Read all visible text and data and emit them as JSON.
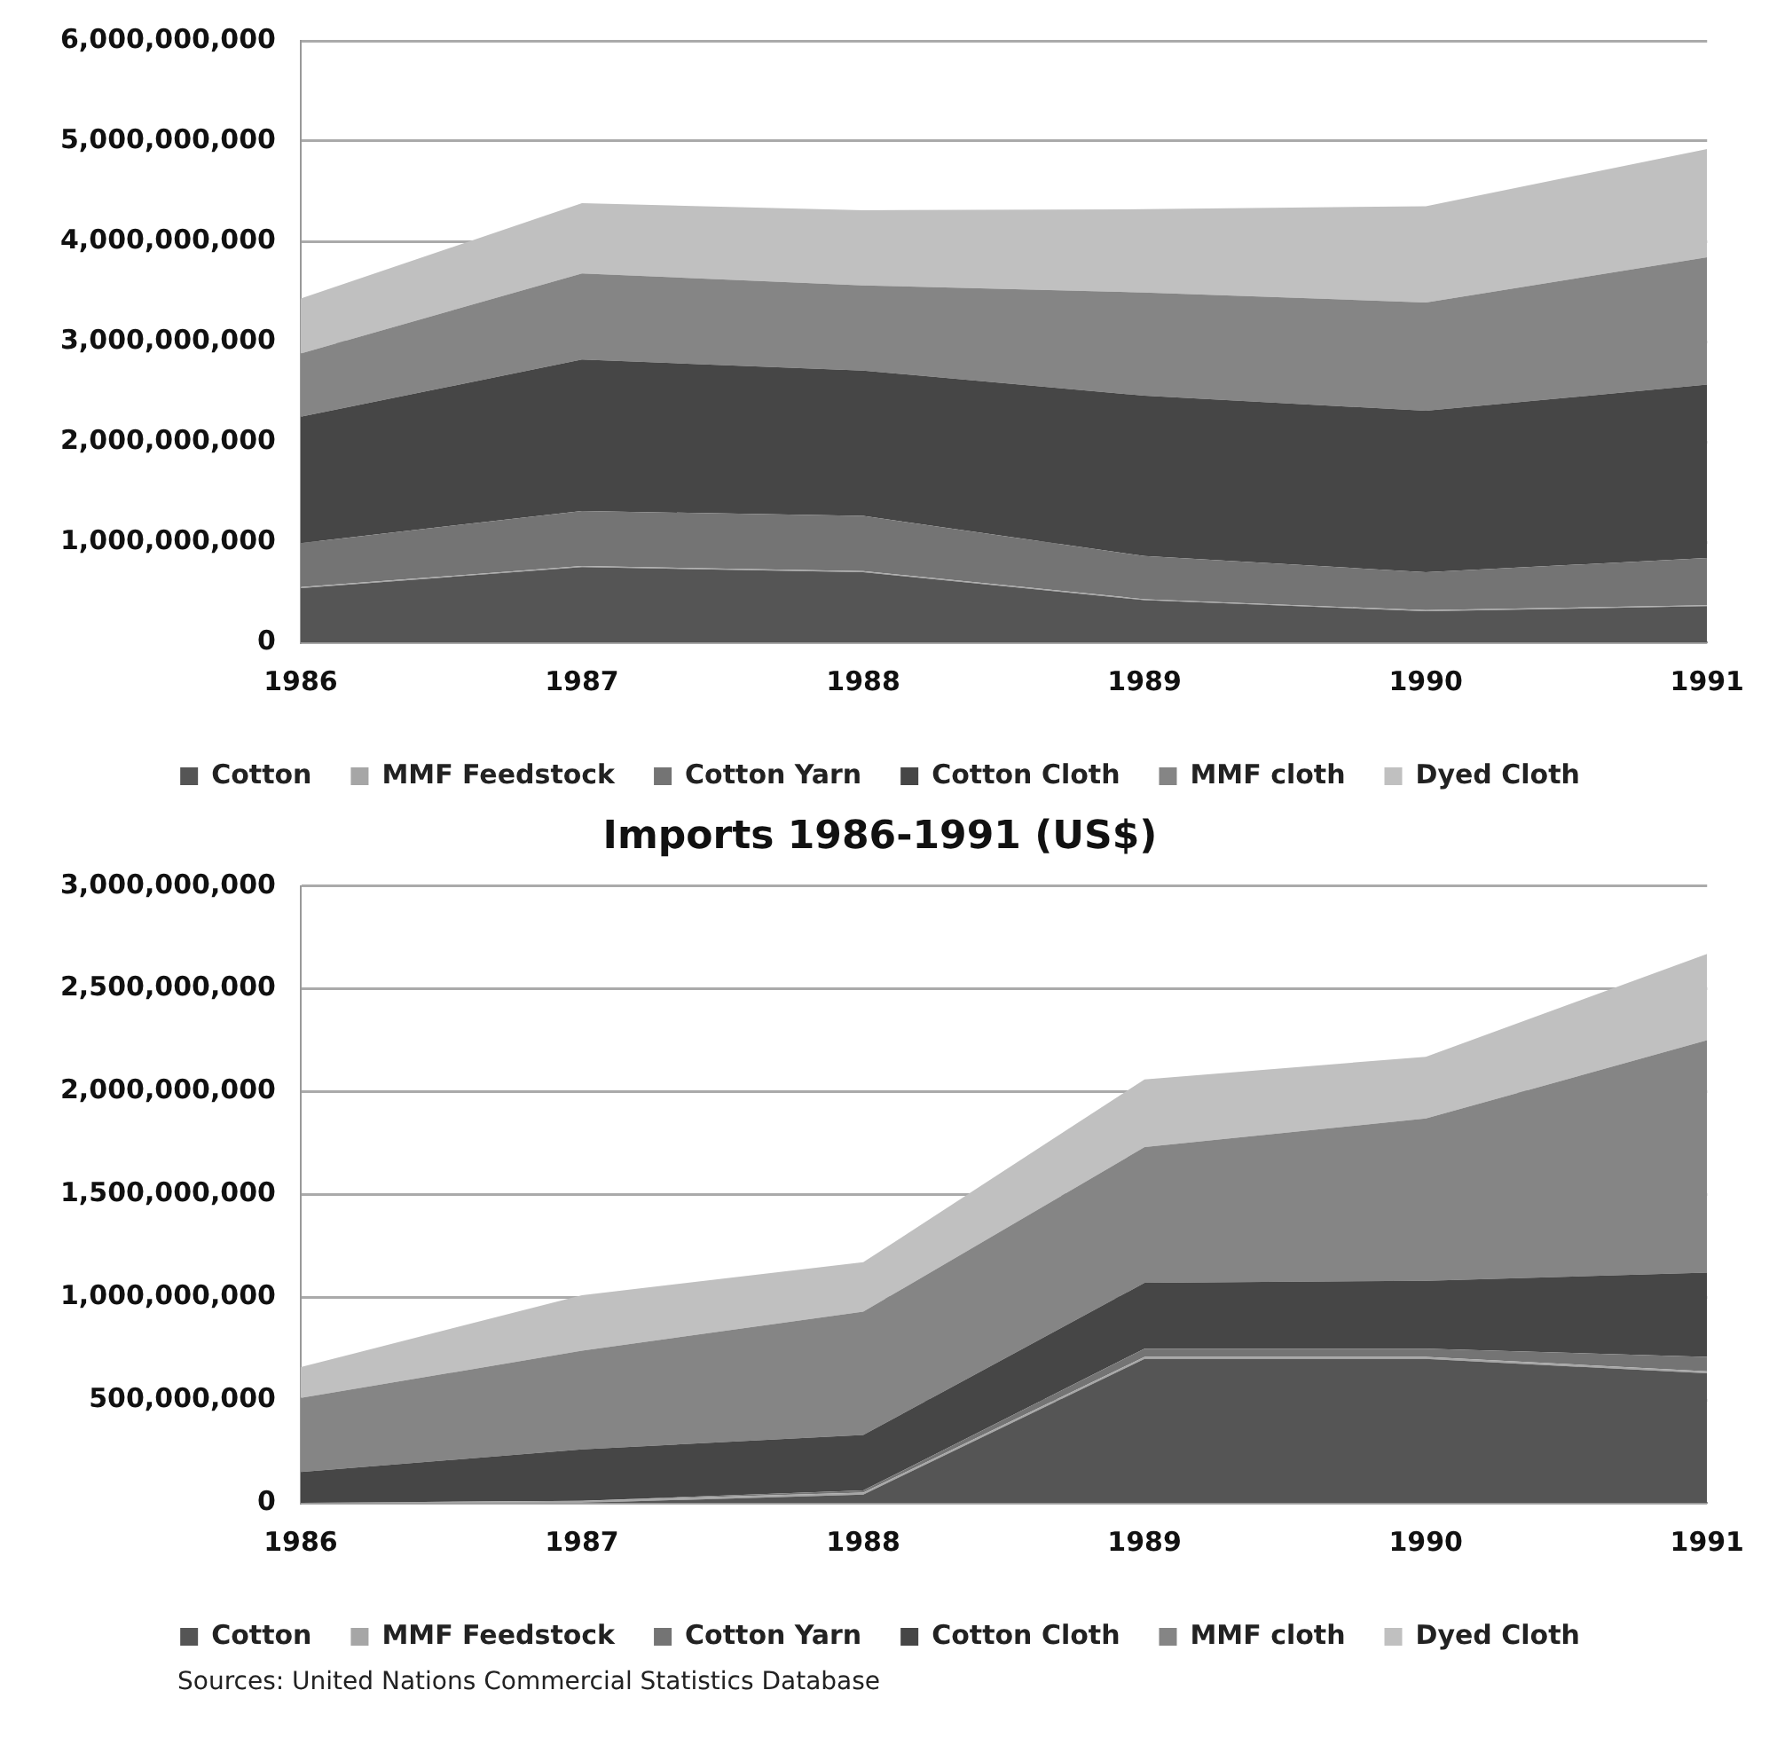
{
  "chart_data": [
    {
      "type": "area",
      "stacked": true,
      "categories": [
        "1986",
        "1987",
        "1988",
        "1989",
        "1990",
        "1991"
      ],
      "ylim": [
        0,
        6000000000
      ],
      "yticks": [
        0,
        {
          "value": 1000000000,
          "label": "1,000,000,000"
        },
        {
          "value": 2000000000,
          "label": "2,000,000,000"
        },
        {
          "value": 3000000000,
          "label": "3,000,000,000"
        },
        {
          "value": 4000000000,
          "label": "4,000,000,000"
        },
        {
          "value": 5000000000,
          "label": "5,000,000,000"
        },
        {
          "value": 6000000000,
          "label": "6,000,000,000"
        }
      ],
      "grid": "y",
      "legend": "bottom",
      "series": [
        {
          "name": "Cotton",
          "color": "#555555",
          "values": [
            540000000,
            750000000,
            700000000,
            420000000,
            310000000,
            360000000
          ]
        },
        {
          "name": "MMF Feedstock",
          "color": "#a6a6a6",
          "values": [
            10000000,
            10000000,
            10000000,
            10000000,
            10000000,
            10000000
          ]
        },
        {
          "name": "Cotton Yarn",
          "color": "#747474",
          "values": [
            440000000,
            550000000,
            550000000,
            430000000,
            380000000,
            470000000
          ]
        },
        {
          "name": "Cotton Cloth",
          "color": "#464646",
          "values": [
            1260000000,
            1510000000,
            1450000000,
            1600000000,
            1610000000,
            1730000000
          ]
        },
        {
          "name": "MMF cloth",
          "color": "#858585",
          "values": [
            630000000,
            860000000,
            850000000,
            1030000000,
            1080000000,
            1270000000
          ]
        },
        {
          "name": "Dyed Cloth",
          "color": "#c0c0c0",
          "values": [
            550000000,
            700000000,
            750000000,
            830000000,
            960000000,
            1080000000
          ]
        }
      ]
    },
    {
      "type": "area",
      "stacked": true,
      "title": "Imports 1986-1991 (US$)",
      "categories": [
        "1986",
        "1987",
        "1988",
        "1989",
        "1990",
        "1991"
      ],
      "ylim": [
        0,
        3000000000
      ],
      "yticks": [
        0,
        {
          "value": 500000000,
          "label": "500,000,000"
        },
        {
          "value": 1000000000,
          "label": "1,000,000,000"
        },
        {
          "value": 1500000000,
          "label": "1,500,000,000"
        },
        {
          "value": 2000000000,
          "label": "2,000,000,000"
        },
        {
          "value": 2500000000,
          "label": "2,500,000,000"
        },
        {
          "value": 3000000000,
          "label": "3,000,000,000"
        }
      ],
      "grid": "y",
      "legend": "bottom",
      "annotations": [
        "Sources: United Nations Commercial Statistics Database"
      ],
      "series": [
        {
          "name": "Cotton",
          "color": "#555555",
          "values": [
            0,
            0,
            40000000,
            700000000,
            700000000,
            630000000
          ]
        },
        {
          "name": "MMF Feedstock",
          "color": "#a6a6a6",
          "values": [
            0,
            10000000,
            10000000,
            10000000,
            10000000,
            10000000
          ]
        },
        {
          "name": "Cotton Yarn",
          "color": "#747474",
          "values": [
            0,
            0,
            10000000,
            40000000,
            40000000,
            70000000
          ]
        },
        {
          "name": "Cotton Cloth",
          "color": "#464646",
          "values": [
            150000000,
            250000000,
            270000000,
            320000000,
            330000000,
            410000000
          ]
        },
        {
          "name": "MMF cloth",
          "color": "#858585",
          "values": [
            360000000,
            480000000,
            600000000,
            660000000,
            790000000,
            1130000000
          ]
        },
        {
          "name": "Dyed Cloth",
          "color": "#c0c0c0",
          "values": [
            150000000,
            270000000,
            240000000,
            330000000,
            300000000,
            420000000
          ]
        }
      ]
    }
  ]
}
